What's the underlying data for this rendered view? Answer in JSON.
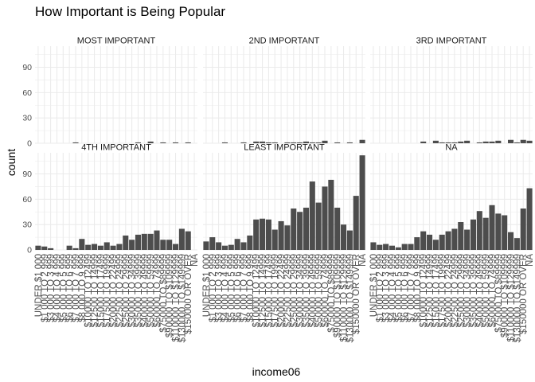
{
  "chart_data": {
    "type": "bar",
    "title": "How Important is Being Popular",
    "xlabel": "income06",
    "ylabel": "count",
    "ylim": [
      0,
      115
    ],
    "yticks": [
      0,
      30,
      60,
      90
    ],
    "grid": true,
    "bar_color": "#4d4d4d",
    "facet_layout": {
      "rows": 2,
      "cols": 3
    },
    "categories": [
      "UNDER $1 000",
      "$1 000 TO 2 999",
      "$3 000 TO 3 999",
      "$4 000 TO 4 999",
      "$5 000 TO 5 999",
      "$6 000 TO 6 999",
      "$7 000 TO 7 999",
      "$8 000 TO 9 999",
      "$10000 TO 12499",
      "$12500 TO 14999",
      "$15000 TO 17499",
      "$17500 TO 19999",
      "$20000 TO 22499",
      "$22500 TO 24999",
      "$25000 TO 29999",
      "$30000 TO 34999",
      "$35000 TO 39999",
      "$40000 TO 49999",
      "$50000 TO 59999",
      "$60000 TO 74999",
      "$75000 TO $89999",
      "$90000 TO $109999",
      "$110000 TO $129999",
      "$130000 TO $149999",
      "$150000 OR OVER",
      "NA"
    ],
    "facets": [
      {
        "name": "MOST IMPORTANT",
        "values": [
          0,
          0,
          0,
          0,
          0,
          0,
          1,
          0,
          0,
          0,
          0,
          0,
          0,
          0,
          0,
          0,
          1,
          0,
          2,
          0,
          1,
          0,
          1,
          0,
          1,
          0
        ]
      },
      {
        "name": "2ND IMPORTANT",
        "values": [
          0,
          0,
          0,
          1,
          0,
          0,
          1,
          0,
          2,
          2,
          1,
          1,
          0,
          1,
          1,
          1,
          2,
          1,
          1,
          3,
          0,
          1,
          0,
          1,
          0,
          4
        ]
      },
      {
        "name": "3RD IMPORTANT",
        "values": [
          0,
          0,
          0,
          0,
          0,
          0,
          0,
          0,
          2,
          0,
          3,
          1,
          1,
          1,
          2,
          3,
          0,
          1,
          2,
          2,
          3,
          0,
          4,
          1,
          4,
          3
        ]
      },
      {
        "name": "4TH IMPORTANT",
        "values": [
          5,
          4,
          2,
          0,
          0,
          5,
          2,
          13,
          6,
          7,
          5,
          9,
          5,
          7,
          17,
          12,
          18,
          19,
          19,
          23,
          12,
          12,
          7,
          25,
          22,
          0
        ]
      },
      {
        "name": "LEAST IMPORTANT",
        "values": [
          10,
          15,
          9,
          5,
          6,
          13,
          9,
          17,
          36,
          37,
          36,
          24,
          34,
          29,
          49,
          45,
          50,
          81,
          56,
          75,
          83,
          50,
          30,
          23,
          64,
          112
        ]
      },
      {
        "name": "NA",
        "values": [
          9,
          6,
          7,
          5,
          3,
          7,
          7,
          15,
          22,
          18,
          12,
          18,
          22,
          25,
          33,
          24,
          36,
          46,
          38,
          53,
          43,
          41,
          21,
          14,
          49,
          73
        ]
      }
    ]
  }
}
